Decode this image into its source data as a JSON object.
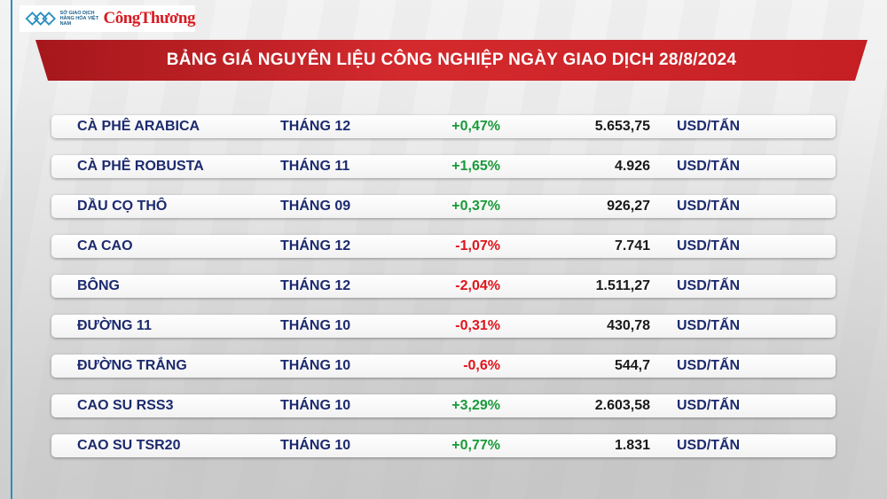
{
  "logo": {
    "org_text": "SỞ GIAO DỊCH HÀNG HÓA VIỆT NAM",
    "brand": "CôngThương",
    "icon": "exchange-logo-icon"
  },
  "banner": {
    "title": "BẢNG GIÁ NGUYÊN LIỆU CÔNG NGHIỆP NGÀY GIAO DỊCH 28/8/2024"
  },
  "colors": {
    "up": "#1a9a3a",
    "down": "#e0141b",
    "banner": "#c51f24",
    "text": "#1c2a6e"
  },
  "rows": [
    {
      "name": "CÀ PHÊ ARABICA",
      "month": "THÁNG 12",
      "change": "+0,47%",
      "direction": "up",
      "price": "5.653,75",
      "unit": "USD/TẤN"
    },
    {
      "name": "CÀ PHÊ ROBUSTA",
      "month": "THÁNG 11",
      "change": "+1,65%",
      "direction": "up",
      "price": "4.926",
      "unit": "USD/TẤN"
    },
    {
      "name": "DẦU CỌ THÔ",
      "month": "THÁNG 09",
      "change": "+0,37%",
      "direction": "up",
      "price": "926,27",
      "unit": "USD/TẤN"
    },
    {
      "name": "CA CAO",
      "month": "THÁNG 12",
      "change": "-1,07%",
      "direction": "down",
      "price": "7.741",
      "unit": "USD/TẤN"
    },
    {
      "name": "BÔNG",
      "month": "THÁNG 12",
      "change": "-2,04%",
      "direction": "down",
      "price": "1.511,27",
      "unit": "USD/TẤN"
    },
    {
      "name": "ĐƯỜNG 11",
      "month": "THÁNG 10",
      "change": "-0,31%",
      "direction": "down",
      "price": "430,78",
      "unit": "USD/TẤN"
    },
    {
      "name": "ĐƯỜNG TRẮNG",
      "month": "THÁNG 10",
      "change": "-0,6%",
      "direction": "down",
      "price": "544,7",
      "unit": "USD/TẤN"
    },
    {
      "name": "CAO SU RSS3",
      "month": "THÁNG 10",
      "change": "+3,29%",
      "direction": "up",
      "price": "2.603,58",
      "unit": "USD/TẤN"
    },
    {
      "name": "CAO SU TSR20",
      "month": "THÁNG 10",
      "change": "+0,77%",
      "direction": "up",
      "price": "1.831",
      "unit": "USD/TẤN"
    }
  ]
}
